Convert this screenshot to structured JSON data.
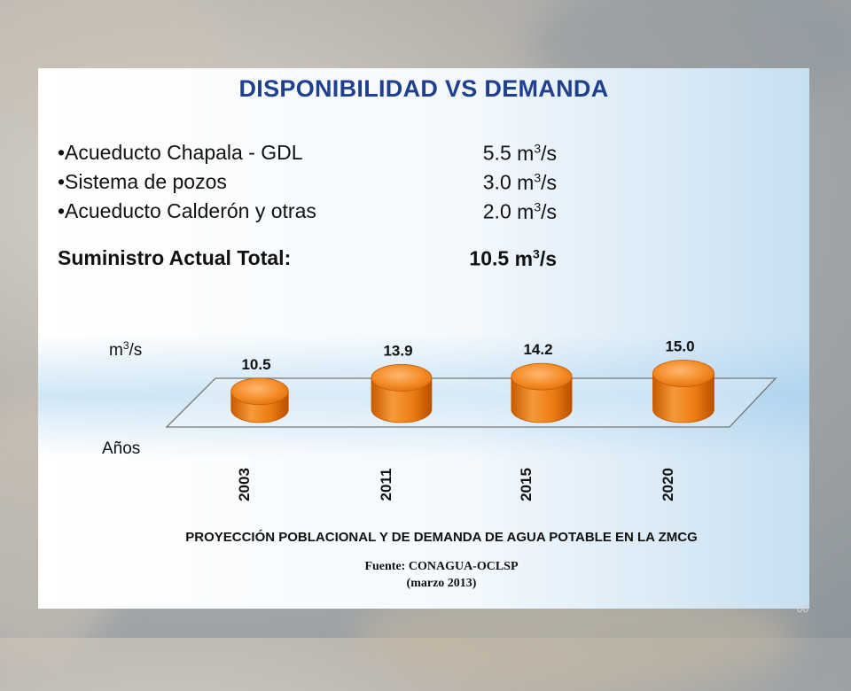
{
  "slide": {
    "title": "DISPONIBILIDAD VS DEMANDA",
    "supply": [
      {
        "label": "•Acueducto Chapala - GDL",
        "value": "5.5",
        "unit": "m",
        "unit_exp": "3",
        "unit_tail": "/s"
      },
      {
        "label": "•Sistema de pozos",
        "value": "3.0",
        "unit": "m",
        "unit_exp": "3",
        "unit_tail": "/s"
      },
      {
        "label": "•Acueducto Calderón y otras",
        "value": "2.0",
        "unit": "m",
        "unit_exp": "3",
        "unit_tail": "/s"
      }
    ],
    "total": {
      "label": "Suministro Actual Total:",
      "value": "10.5",
      "unit": "m",
      "unit_exp": "3",
      "unit_tail": "/s"
    },
    "footer_title": "PROYECCIÓN POBLACIONAL Y DE DEMANDA DE AGUA POTABLE EN LA ZMCG",
    "source_line1": "Fuente: CONAGUA-OCLSP",
    "source_line2": "(marzo 2013)",
    "page_number": "68"
  },
  "chart_data": {
    "type": "bar",
    "categories": [
      "2003",
      "2011",
      "2015",
      "2020"
    ],
    "values": [
      10.5,
      13.9,
      14.2,
      15.0
    ],
    "data_labels": [
      "10.5",
      "13.9",
      "14.2",
      "15.0"
    ],
    "ylabel": "m3/s",
    "ylabel_main": "m",
    "ylabel_exp": "3",
    "ylabel_tail": "/s",
    "xlabel": "Años",
    "bar_color": "#f07d12",
    "bar_dark": "#c55a00"
  }
}
